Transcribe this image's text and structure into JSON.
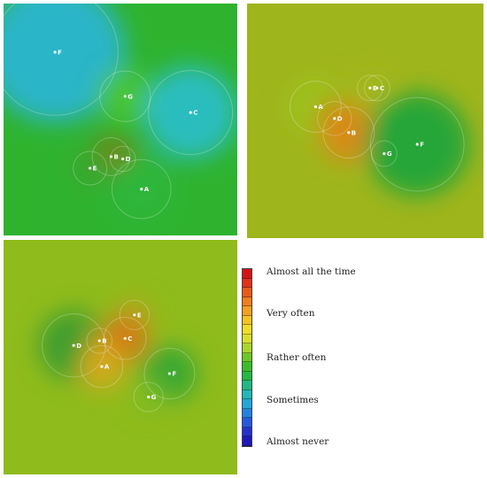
{
  "chart_data": {
    "type": "heatmap",
    "panels": [
      {
        "name": "top-left",
        "base_color": "#2fb32f",
        "points": [
          {
            "label": "F",
            "x": 0.22,
            "y": 0.21,
            "color": "#2ab5c8",
            "radius": 0.3
          },
          {
            "label": "G",
            "x": 0.52,
            "y": 0.4,
            "color": "#46c435",
            "radius": 0.12
          },
          {
            "label": "C",
            "x": 0.8,
            "y": 0.47,
            "color": "#2cbdbd",
            "radius": 0.2
          },
          {
            "label": "B",
            "x": 0.46,
            "y": 0.66,
            "color": "#6b8a16",
            "radius": 0.09
          },
          {
            "label": "D",
            "x": 0.51,
            "y": 0.67,
            "color": "#7c7a14",
            "radius": 0.06
          },
          {
            "label": "E",
            "x": 0.37,
            "y": 0.71,
            "color": "#3aa62d",
            "radius": 0.08
          },
          {
            "label": "A",
            "x": 0.59,
            "y": 0.8,
            "color": "#2db63a",
            "radius": 0.14
          }
        ]
      },
      {
        "name": "top-right",
        "base_color": "#9fb51c",
        "points": [
          {
            "label": "A",
            "x": 0.29,
            "y": 0.44,
            "color": "#9cc21d",
            "radius": 0.12
          },
          {
            "label": "E",
            "x": 0.52,
            "y": 0.36,
            "color": "#a8bb1c",
            "radius": 0.06
          },
          {
            "label": "C",
            "x": 0.55,
            "y": 0.36,
            "color": "#a3b81b",
            "radius": 0.06
          },
          {
            "label": "D",
            "x": 0.37,
            "y": 0.49,
            "color": "#b48f18",
            "radius": 0.08
          },
          {
            "label": "B",
            "x": 0.43,
            "y": 0.55,
            "color": "#d98a18",
            "radius": 0.12
          },
          {
            "label": "G",
            "x": 0.58,
            "y": 0.64,
            "color": "#a6b51c",
            "radius": 0.06
          },
          {
            "label": "F",
            "x": 0.72,
            "y": 0.6,
            "color": "#26a637",
            "radius": 0.22
          }
        ]
      },
      {
        "name": "bottom-left",
        "base_color": "#8fbb1c",
        "points": [
          {
            "label": "E",
            "x": 0.56,
            "y": 0.32,
            "color": "#b5a41a",
            "radius": 0.07
          },
          {
            "label": "D",
            "x": 0.3,
            "y": 0.45,
            "color": "#3f9e2f",
            "radius": 0.15
          },
          {
            "label": "B",
            "x": 0.41,
            "y": 0.43,
            "color": "#a8a01a",
            "radius": 0.06
          },
          {
            "label": "C",
            "x": 0.52,
            "y": 0.42,
            "color": "#d27d14",
            "radius": 0.1
          },
          {
            "label": "A",
            "x": 0.42,
            "y": 0.54,
            "color": "#d1a91a",
            "radius": 0.1
          },
          {
            "label": "F",
            "x": 0.71,
            "y": 0.57,
            "color": "#3aa831",
            "radius": 0.12
          },
          {
            "label": "G",
            "x": 0.62,
            "y": 0.67,
            "color": "#7dbc22",
            "radius": 0.07
          }
        ]
      }
    ],
    "legend": {
      "colors": [
        "#d41414",
        "#e0311a",
        "#e85a1c",
        "#ee7f1e",
        "#f2a020",
        "#f6c224",
        "#f2dc2a",
        "#d8e02c",
        "#a8d62a",
        "#6cc826",
        "#3abd2a",
        "#26b844",
        "#22b884",
        "#22b8b8",
        "#22a6d6",
        "#2382e0",
        "#2558de",
        "#2432cc",
        "#1f18b8"
      ],
      "labels": [
        {
          "text": "Almost all the time",
          "pos": 0.02
        },
        {
          "text": "Very often",
          "pos": 0.25
        },
        {
          "text": "Rather often",
          "pos": 0.5
        },
        {
          "text": "Sometimes",
          "pos": 0.74
        },
        {
          "text": "Almost never",
          "pos": 0.97
        }
      ]
    }
  }
}
